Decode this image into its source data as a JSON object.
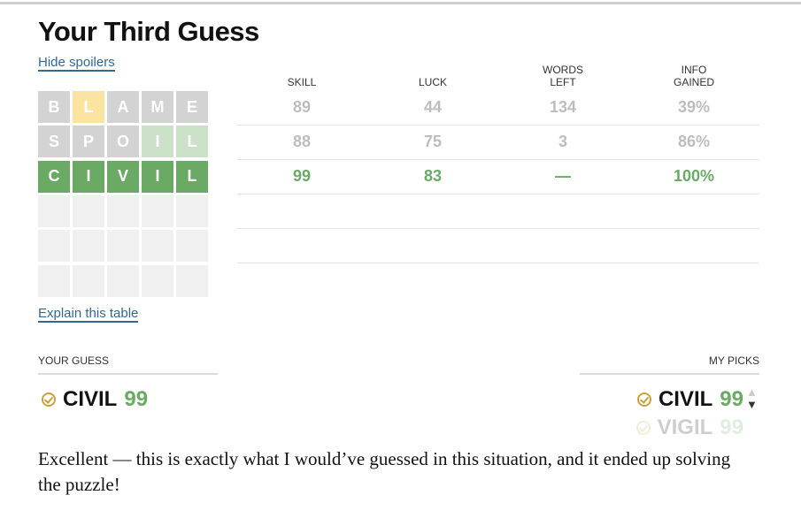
{
  "title": "Your Third Guess",
  "hide_spoilers": "Hide spoilers",
  "explain": "Explain this table",
  "grid": {
    "rows": [
      [
        {
          "l": "B",
          "s": "absent"
        },
        {
          "l": "L",
          "s": "present"
        },
        {
          "l": "A",
          "s": "absent"
        },
        {
          "l": "M",
          "s": "absent"
        },
        {
          "l": "E",
          "s": "absent"
        }
      ],
      [
        {
          "l": "S",
          "s": "absent"
        },
        {
          "l": "P",
          "s": "absent"
        },
        {
          "l": "O",
          "s": "absent"
        },
        {
          "l": "I",
          "s": "correct-faded"
        },
        {
          "l": "L",
          "s": "correct-faded"
        }
      ],
      [
        {
          "l": "C",
          "s": "correct"
        },
        {
          "l": "I",
          "s": "correct"
        },
        {
          "l": "V",
          "s": "correct"
        },
        {
          "l": "I",
          "s": "correct"
        },
        {
          "l": "L",
          "s": "correct"
        }
      ]
    ],
    "empty_rows": 3,
    "colors": {
      "absent": "#d3d3d3",
      "present": "#fbe3a2",
      "correct-faded": "#cbe2c8",
      "correct": "#6aaa64",
      "empty": "#f0f0f0"
    }
  },
  "table": {
    "headers": [
      "SKILL",
      "LUCK",
      "WORDS\nLEFT",
      "INFO\nGAINED"
    ],
    "rows": [
      [
        "89",
        "44",
        "134",
        "39%"
      ],
      [
        "88",
        "75",
        "3",
        "86%"
      ],
      [
        "99",
        "83",
        "—",
        "100%"
      ]
    ]
  },
  "your_guess": {
    "label": "YOUR GUESS",
    "word": "CIVIL",
    "score": "99"
  },
  "my_picks": {
    "label": "MY PICKS",
    "word": "CIVIL",
    "score": "99",
    "next_word": "VIGIL",
    "next_score": "99"
  },
  "message": "Excellent — this is exactly what I would’ve guessed in this situation, and it ended up solving the puzzle!"
}
